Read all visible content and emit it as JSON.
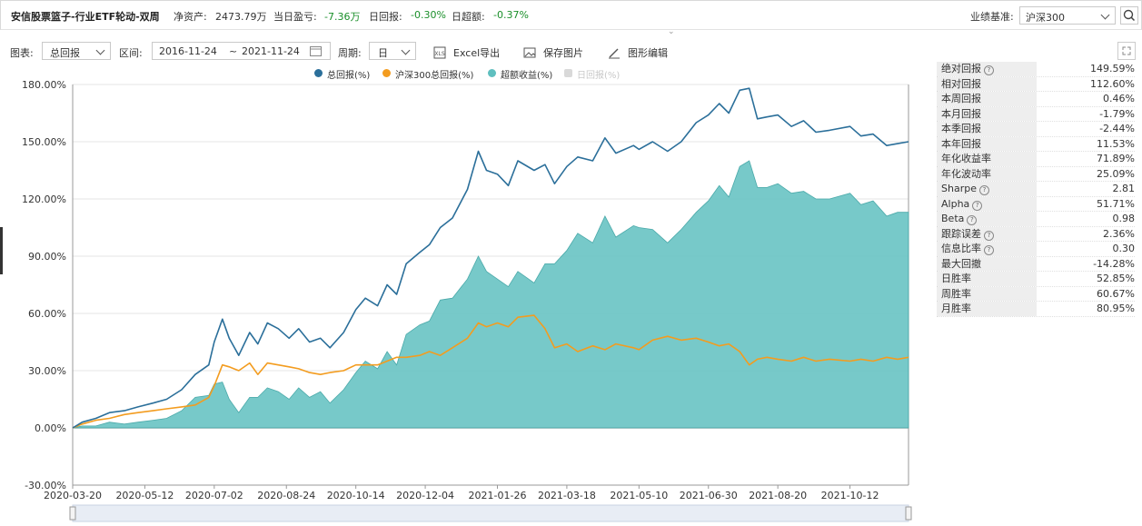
{
  "header": {
    "fund_name": "安信股票篮子-行业ETF轮动-双周",
    "net_assets_label": "净资产:",
    "net_assets_value": "2473.79万",
    "daily_pnl_label": "当日盈亏:",
    "daily_pnl_value": "-7.36万",
    "daily_return_label": "日回报:",
    "daily_return_value": "-0.30%",
    "daily_excess_label": "日超额:",
    "daily_excess_value": "-0.37%",
    "benchmark_label": "业绩基准:",
    "benchmark_value": "沪深300"
  },
  "toolbar": {
    "chart_label": "图表:",
    "chart_value": "总回报",
    "range_label": "区间:",
    "range_start": "2016-11-24",
    "range_sep": "~",
    "range_end": "2021-11-24",
    "period_label": "周期:",
    "period_value": "日",
    "excel_label": "Excel导出",
    "save_label": "保存图片",
    "edit_label": "图形编辑"
  },
  "colors": {
    "total": "#2b6f9a",
    "hs300": "#f39c1f",
    "excess": "#5fbfbf",
    "daily": "#cccccc"
  },
  "chart_data": {
    "type": "line",
    "legend": [
      {
        "name": "总回报(%)",
        "color": "#2b6f9a",
        "enabled": true
      },
      {
        "name": "沪深300总回报(%)",
        "color": "#f39c1f",
        "enabled": true
      },
      {
        "name": "超额收益(%)",
        "color": "#5fbfbf",
        "enabled": true
      },
      {
        "name": "日回报(%)",
        "color": "#cccccc",
        "enabled": false
      }
    ],
    "x_ticks": [
      "2020-03-20",
      "2020-05-12",
      "2020-07-02",
      "2020-08-24",
      "2020-10-14",
      "2020-12-04",
      "2021-01-26",
      "2021-03-18",
      "2021-05-10",
      "2021-06-30",
      "2021-08-20",
      "2021-10-12"
    ],
    "y_ticks": [
      "180.00%",
      "150.00%",
      "120.00%",
      "90.00%",
      "60.00%",
      "30.00%",
      "0.00%",
      "-30.00%"
    ],
    "ylim": [
      -30,
      180
    ],
    "x_range": [
      "2020-03-20",
      "2021-11-24"
    ],
    "series": [
      {
        "name": "总回报(%)",
        "points": [
          [
            "2020-03-20",
            0
          ],
          [
            "2020-03-27",
            3
          ],
          [
            "2020-04-06",
            5
          ],
          [
            "2020-04-16",
            8
          ],
          [
            "2020-04-27",
            9
          ],
          [
            "2020-05-07",
            11
          ],
          [
            "2020-05-18",
            13
          ],
          [
            "2020-05-28",
            15
          ],
          [
            "2020-06-08",
            20
          ],
          [
            "2020-06-18",
            28
          ],
          [
            "2020-06-28",
            33
          ],
          [
            "2020-07-02",
            45
          ],
          [
            "2020-07-08",
            57
          ],
          [
            "2020-07-13",
            47
          ],
          [
            "2020-07-20",
            38
          ],
          [
            "2020-07-28",
            50
          ],
          [
            "2020-08-03",
            44
          ],
          [
            "2020-08-10",
            55
          ],
          [
            "2020-08-18",
            52
          ],
          [
            "2020-08-26",
            47
          ],
          [
            "2020-09-02",
            52
          ],
          [
            "2020-09-10",
            45
          ],
          [
            "2020-09-18",
            47
          ],
          [
            "2020-09-25",
            42
          ],
          [
            "2020-10-05",
            50
          ],
          [
            "2020-10-14",
            62
          ],
          [
            "2020-10-21",
            68
          ],
          [
            "2020-10-30",
            64
          ],
          [
            "2020-11-06",
            75
          ],
          [
            "2020-11-13",
            70
          ],
          [
            "2020-11-20",
            86
          ],
          [
            "2020-11-30",
            92
          ],
          [
            "2020-12-07",
            96
          ],
          [
            "2020-12-15",
            105
          ],
          [
            "2020-12-24",
            110
          ],
          [
            "2021-01-04",
            125
          ],
          [
            "2021-01-12",
            145
          ],
          [
            "2021-01-18",
            135
          ],
          [
            "2021-01-26",
            133
          ],
          [
            "2021-02-03",
            127
          ],
          [
            "2021-02-10",
            140
          ],
          [
            "2021-02-22",
            135
          ],
          [
            "2021-03-02",
            138
          ],
          [
            "2021-03-09",
            128
          ],
          [
            "2021-03-18",
            137
          ],
          [
            "2021-03-26",
            142
          ],
          [
            "2021-04-06",
            140
          ],
          [
            "2021-04-15",
            152
          ],
          [
            "2021-04-23",
            144
          ],
          [
            "2021-05-06",
            148
          ],
          [
            "2021-05-10",
            146
          ],
          [
            "2021-05-20",
            150
          ],
          [
            "2021-05-31",
            145
          ],
          [
            "2021-06-10",
            150
          ],
          [
            "2021-06-21",
            160
          ],
          [
            "2021-06-30",
            164
          ],
          [
            "2021-07-08",
            170
          ],
          [
            "2021-07-15",
            165
          ],
          [
            "2021-07-23",
            177
          ],
          [
            "2021-07-30",
            178
          ],
          [
            "2021-08-05",
            162
          ],
          [
            "2021-08-12",
            163
          ],
          [
            "2021-08-20",
            164
          ],
          [
            "2021-08-30",
            158
          ],
          [
            "2021-09-08",
            161
          ],
          [
            "2021-09-17",
            155
          ],
          [
            "2021-09-27",
            156
          ],
          [
            "2021-10-12",
            158
          ],
          [
            "2021-10-20",
            153
          ],
          [
            "2021-10-29",
            154
          ],
          [
            "2021-11-08",
            148
          ],
          [
            "2021-11-16",
            149
          ],
          [
            "2021-11-24",
            150
          ]
        ]
      },
      {
        "name": "沪深300总回报(%)",
        "points": [
          [
            "2020-03-20",
            0
          ],
          [
            "2020-03-27",
            2
          ],
          [
            "2020-04-06",
            4
          ],
          [
            "2020-04-16",
            5
          ],
          [
            "2020-04-27",
            7
          ],
          [
            "2020-05-07",
            8
          ],
          [
            "2020-05-18",
            9
          ],
          [
            "2020-05-28",
            10
          ],
          [
            "2020-06-08",
            11
          ],
          [
            "2020-06-18",
            12
          ],
          [
            "2020-06-28",
            16
          ],
          [
            "2020-07-02",
            22
          ],
          [
            "2020-07-08",
            33
          ],
          [
            "2020-07-13",
            32
          ],
          [
            "2020-07-20",
            30
          ],
          [
            "2020-07-28",
            34
          ],
          [
            "2020-08-03",
            28
          ],
          [
            "2020-08-10",
            34
          ],
          [
            "2020-08-18",
            33
          ],
          [
            "2020-08-26",
            32
          ],
          [
            "2020-09-02",
            31
          ],
          [
            "2020-09-10",
            29
          ],
          [
            "2020-09-18",
            28
          ],
          [
            "2020-09-25",
            29
          ],
          [
            "2020-10-05",
            30
          ],
          [
            "2020-10-14",
            33
          ],
          [
            "2020-10-21",
            33
          ],
          [
            "2020-10-30",
            33
          ],
          [
            "2020-11-06",
            35
          ],
          [
            "2020-11-13",
            37
          ],
          [
            "2020-11-20",
            37
          ],
          [
            "2020-11-30",
            38
          ],
          [
            "2020-12-07",
            40
          ],
          [
            "2020-12-15",
            38
          ],
          [
            "2020-12-24",
            42
          ],
          [
            "2021-01-04",
            47
          ],
          [
            "2021-01-12",
            55
          ],
          [
            "2021-01-18",
            53
          ],
          [
            "2021-01-26",
            55
          ],
          [
            "2021-02-03",
            53
          ],
          [
            "2021-02-10",
            58
          ],
          [
            "2021-02-22",
            59
          ],
          [
            "2021-03-02",
            52
          ],
          [
            "2021-03-09",
            42
          ],
          [
            "2021-03-18",
            44
          ],
          [
            "2021-03-26",
            40
          ],
          [
            "2021-04-06",
            43
          ],
          [
            "2021-04-15",
            41
          ],
          [
            "2021-04-23",
            44
          ],
          [
            "2021-05-06",
            42
          ],
          [
            "2021-05-10",
            41
          ],
          [
            "2021-05-20",
            46
          ],
          [
            "2021-05-31",
            48
          ],
          [
            "2021-06-10",
            46
          ],
          [
            "2021-06-21",
            47
          ],
          [
            "2021-06-30",
            45
          ],
          [
            "2021-07-08",
            43
          ],
          [
            "2021-07-15",
            44
          ],
          [
            "2021-07-23",
            40
          ],
          [
            "2021-07-30",
            33
          ],
          [
            "2021-08-05",
            36
          ],
          [
            "2021-08-12",
            37
          ],
          [
            "2021-08-20",
            36
          ],
          [
            "2021-08-30",
            35
          ],
          [
            "2021-09-08",
            37
          ],
          [
            "2021-09-17",
            35
          ],
          [
            "2021-09-27",
            36
          ],
          [
            "2021-10-12",
            35
          ],
          [
            "2021-10-20",
            36
          ],
          [
            "2021-10-29",
            35
          ],
          [
            "2021-11-08",
            37
          ],
          [
            "2021-11-16",
            36
          ],
          [
            "2021-11-24",
            37
          ]
        ]
      },
      {
        "name": "超额收益(%)",
        "points": [
          [
            "2020-03-20",
            0
          ],
          [
            "2020-03-27",
            1
          ],
          [
            "2020-04-06",
            1
          ],
          [
            "2020-04-16",
            3
          ],
          [
            "2020-04-27",
            2
          ],
          [
            "2020-05-07",
            3
          ],
          [
            "2020-05-18",
            4
          ],
          [
            "2020-05-28",
            5
          ],
          [
            "2020-06-08",
            9
          ],
          [
            "2020-06-18",
            16
          ],
          [
            "2020-06-28",
            17
          ],
          [
            "2020-07-02",
            23
          ],
          [
            "2020-07-08",
            24
          ],
          [
            "2020-07-13",
            15
          ],
          [
            "2020-07-20",
            8
          ],
          [
            "2020-07-28",
            16
          ],
          [
            "2020-08-03",
            16
          ],
          [
            "2020-08-10",
            21
          ],
          [
            "2020-08-18",
            19
          ],
          [
            "2020-08-26",
            15
          ],
          [
            "2020-09-02",
            21
          ],
          [
            "2020-09-10",
            16
          ],
          [
            "2020-09-18",
            19
          ],
          [
            "2020-09-25",
            13
          ],
          [
            "2020-10-05",
            20
          ],
          [
            "2020-10-14",
            29
          ],
          [
            "2020-10-21",
            35
          ],
          [
            "2020-10-30",
            31
          ],
          [
            "2020-11-06",
            40
          ],
          [
            "2020-11-13",
            33
          ],
          [
            "2020-11-20",
            49
          ],
          [
            "2020-11-30",
            54
          ],
          [
            "2020-12-07",
            56
          ],
          [
            "2020-12-15",
            67
          ],
          [
            "2020-12-24",
            68
          ],
          [
            "2021-01-04",
            78
          ],
          [
            "2021-01-12",
            90
          ],
          [
            "2021-01-18",
            82
          ],
          [
            "2021-01-26",
            78
          ],
          [
            "2021-02-03",
            74
          ],
          [
            "2021-02-10",
            82
          ],
          [
            "2021-02-22",
            76
          ],
          [
            "2021-03-02",
            86
          ],
          [
            "2021-03-09",
            86
          ],
          [
            "2021-03-18",
            93
          ],
          [
            "2021-03-26",
            102
          ],
          [
            "2021-04-06",
            97
          ],
          [
            "2021-04-15",
            111
          ],
          [
            "2021-04-23",
            100
          ],
          [
            "2021-05-06",
            106
          ],
          [
            "2021-05-10",
            105
          ],
          [
            "2021-05-20",
            104
          ],
          [
            "2021-05-31",
            97
          ],
          [
            "2021-06-10",
            104
          ],
          [
            "2021-06-21",
            113
          ],
          [
            "2021-06-30",
            119
          ],
          [
            "2021-07-08",
            127
          ],
          [
            "2021-07-15",
            121
          ],
          [
            "2021-07-23",
            137
          ],
          [
            "2021-07-30",
            140
          ],
          [
            "2021-08-05",
            126
          ],
          [
            "2021-08-12",
            126
          ],
          [
            "2021-08-20",
            128
          ],
          [
            "2021-08-30",
            123
          ],
          [
            "2021-09-08",
            124
          ],
          [
            "2021-09-17",
            120
          ],
          [
            "2021-09-27",
            120
          ],
          [
            "2021-10-12",
            123
          ],
          [
            "2021-10-20",
            117
          ],
          [
            "2021-10-29",
            119
          ],
          [
            "2021-11-08",
            111
          ],
          [
            "2021-11-16",
            113
          ],
          [
            "2021-11-24",
            113
          ]
        ]
      }
    ]
  },
  "stats": [
    {
      "label": "绝对回报",
      "help": true,
      "value": "149.59%"
    },
    {
      "label": "相对回报",
      "help": false,
      "value": "112.60%"
    },
    {
      "label": "本周回报",
      "help": false,
      "value": "0.46%"
    },
    {
      "label": "本月回报",
      "help": false,
      "value": "-1.79%"
    },
    {
      "label": "本季回报",
      "help": false,
      "value": "-2.44%"
    },
    {
      "label": "本年回报",
      "help": false,
      "value": "11.53%"
    },
    {
      "label": "年化收益率",
      "help": false,
      "value": "71.89%"
    },
    {
      "label": "年化波动率",
      "help": false,
      "value": "25.09%"
    },
    {
      "label": "Sharpe",
      "help": true,
      "value": "2.81"
    },
    {
      "label": "Alpha",
      "help": true,
      "value": "51.71%"
    },
    {
      "label": "Beta",
      "help": true,
      "value": "0.98"
    },
    {
      "label": "跟踪误差",
      "help": true,
      "value": "2.36%"
    },
    {
      "label": "信息比率",
      "help": true,
      "value": "0.30"
    },
    {
      "label": "最大回撤",
      "help": false,
      "value": "-14.28%"
    },
    {
      "label": "日胜率",
      "help": false,
      "value": "52.85%"
    },
    {
      "label": "周胜率",
      "help": false,
      "value": "60.67%"
    },
    {
      "label": "月胜率",
      "help": false,
      "value": "80.95%"
    }
  ]
}
